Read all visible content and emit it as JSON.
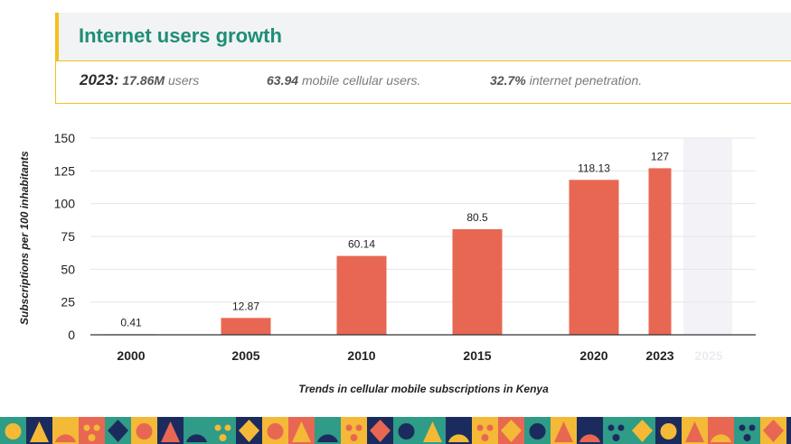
{
  "header": {
    "title": "Internet users growth"
  },
  "stats": {
    "year_label": "2023:",
    "users_value": "17.86M",
    "users_text": "users",
    "mobile_value": "63.94",
    "mobile_text": "mobile cellular users.",
    "penetration_value": "32.7%",
    "penetration_text": "internet penetration."
  },
  "colors": {
    "bar": "#e86752",
    "title": "#1e8e77",
    "accent": "#f2c021",
    "grid": "#e6e6e6",
    "future_shade": "#f3f3f7"
  },
  "chart_data": {
    "type": "bar",
    "title": "",
    "xlabel": "Trends in cellular mobile subscriptions in Kenya",
    "ylabel": "Subscriptions per 100 inhabitants",
    "categories": [
      "2000",
      "2005",
      "2010",
      "2015",
      "2020",
      "2023",
      "2025"
    ],
    "values": [
      0.41,
      12.87,
      60.14,
      80.5,
      118.13,
      127,
      null
    ],
    "value_labels": [
      "0.41",
      "12.87",
      "60.14",
      "80.5",
      "118.13",
      "127",
      ""
    ],
    "yticks": [
      0,
      25,
      50,
      75,
      100,
      125,
      150
    ],
    "ylim": [
      0,
      150
    ],
    "grid": true,
    "future_category": "2025"
  }
}
